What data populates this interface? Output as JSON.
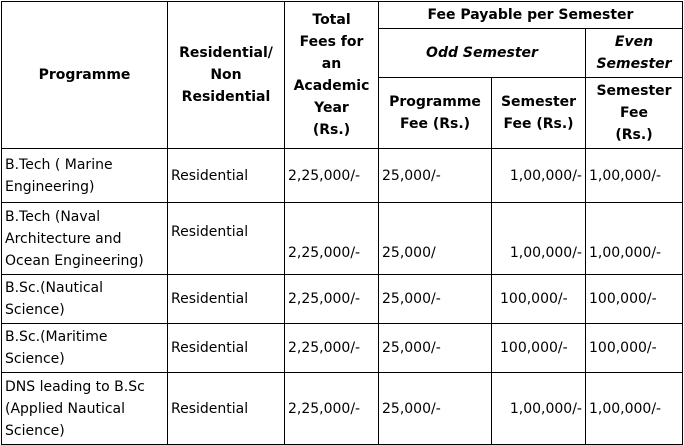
{
  "table": {
    "headers": {
      "programme": "Programme",
      "residential": "Residential/\nNon\nResidential",
      "total_fees": "Total\nFees for\nan\nAcademic\nYear\n(Rs.)",
      "fee_payable": "Fee Payable per Semester",
      "odd_semester": "Odd Semester",
      "even_semester": "Even\nSemester",
      "programme_fee": "Programme\nFee (Rs.)",
      "semester_fee_odd": "Semester\nFee (Rs.)",
      "semester_fee_even": "Semester\nFee\n(Rs.)"
    },
    "rows": [
      {
        "programme": "B.Tech  ( Marine\nEngineering)",
        "residential": "Residential",
        "total": "2,25,000/-",
        "programme_fee": "25,000/-",
        "semester_fee_odd": "1,00,000/-",
        "semester_fee_even": "1,00,000/-"
      },
      {
        "programme": "B.Tech (Naval\nArchitecture and\nOcean Engineering)",
        "residential": "Residential",
        "total": "2,25,000/-",
        "programme_fee": "25,000/",
        "semester_fee_odd": "1,00,000/-",
        "semester_fee_even": "1,00,000/-"
      },
      {
        "programme": "B.Sc.(Nautical\nScience)",
        "residential": "Residential",
        "total": "2,25,000/-",
        "programme_fee": "25,000/-",
        "semester_fee_odd": "100,000/-",
        "semester_fee_even": "100,000/-"
      },
      {
        "programme": "B.Sc.(Maritime\nScience)",
        "residential": "Residential",
        "total": "2,25,000/-",
        "programme_fee": "25,000/-",
        "semester_fee_odd": "100,000/-",
        "semester_fee_even": "100,000/-"
      },
      {
        "programme": "DNS leading to B.Sc\n(Applied Nautical\nScience)",
        "residential": "Residential",
        "total": "2,25,000/-",
        "programme_fee": "25,000/-",
        "semester_fee_odd": "1,00,000/-",
        "semester_fee_even": "1,00,000/-"
      }
    ]
  }
}
